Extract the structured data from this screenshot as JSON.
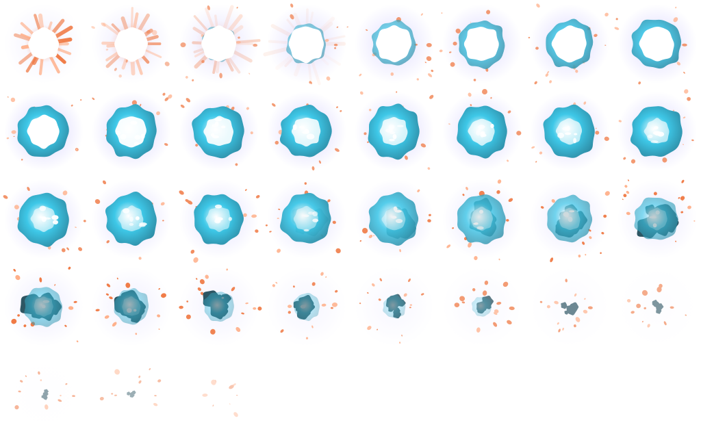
{
  "sprite_sheet": {
    "columns": 8,
    "rows": 5,
    "frame_count": 35,
    "colors": {
      "glow": "#8a7dff",
      "core": "#ffffff",
      "cyan": "#3ec8e8",
      "teal": "#2f8fa8",
      "smoke": "#2e5663",
      "spark": "#f07a45",
      "spark_light": "#ffb08a"
    },
    "frames": [
      {
        "stage": "flash",
        "core": 1.0,
        "cloud": 0.0,
        "smoke": 0.0,
        "glow": 0.3,
        "sparks": 0.0,
        "rays": 1.0,
        "size": 0.55
      },
      {
        "stage": "flash",
        "core": 1.0,
        "cloud": 0.1,
        "smoke": 0.0,
        "glow": 0.45,
        "sparks": 0.3,
        "rays": 0.7,
        "size": 0.62
      },
      {
        "stage": "expand",
        "core": 1.0,
        "cloud": 0.25,
        "smoke": 0.0,
        "glow": 0.55,
        "sparks": 0.45,
        "rays": 0.35,
        "size": 0.68
      },
      {
        "stage": "expand",
        "core": 1.0,
        "cloud": 0.35,
        "smoke": 0.0,
        "glow": 0.65,
        "sparks": 0.5,
        "rays": 0.1,
        "size": 0.72
      },
      {
        "stage": "expand",
        "core": 1.0,
        "cloud": 0.45,
        "smoke": 0.0,
        "glow": 0.7,
        "sparks": 0.55,
        "rays": 0.0,
        "size": 0.76
      },
      {
        "stage": "expand",
        "core": 1.0,
        "cloud": 0.55,
        "smoke": 0.0,
        "glow": 0.75,
        "sparks": 0.55,
        "rays": 0.0,
        "size": 0.78
      },
      {
        "stage": "expand",
        "core": 1.0,
        "cloud": 0.6,
        "smoke": 0.0,
        "glow": 0.78,
        "sparks": 0.55,
        "rays": 0.0,
        "size": 0.8
      },
      {
        "stage": "expand",
        "core": 1.0,
        "cloud": 0.65,
        "smoke": 0.0,
        "glow": 0.8,
        "sparks": 0.55,
        "rays": 0.0,
        "size": 0.82
      },
      {
        "stage": "peak",
        "core": 0.9,
        "cloud": 0.8,
        "smoke": 0.0,
        "glow": 0.9,
        "sparks": 0.55,
        "rays": 0.0,
        "size": 0.86
      },
      {
        "stage": "peak",
        "core": 0.85,
        "cloud": 0.82,
        "smoke": 0.0,
        "glow": 0.88,
        "sparks": 0.55,
        "rays": 0.0,
        "size": 0.86
      },
      {
        "stage": "peak",
        "core": 0.8,
        "cloud": 0.84,
        "smoke": 0.0,
        "glow": 0.86,
        "sparks": 0.55,
        "rays": 0.0,
        "size": 0.86
      },
      {
        "stage": "peak",
        "core": 0.75,
        "cloud": 0.86,
        "smoke": 0.0,
        "glow": 0.84,
        "sparks": 0.55,
        "rays": 0.0,
        "size": 0.86
      },
      {
        "stage": "peak",
        "core": 0.7,
        "cloud": 0.88,
        "smoke": 0.0,
        "glow": 0.82,
        "sparks": 0.55,
        "rays": 0.0,
        "size": 0.86
      },
      {
        "stage": "peak",
        "core": 0.65,
        "cloud": 0.9,
        "smoke": 0.0,
        "glow": 0.8,
        "sparks": 0.55,
        "rays": 0.0,
        "size": 0.86
      },
      {
        "stage": "peak",
        "core": 0.6,
        "cloud": 0.9,
        "smoke": 0.05,
        "glow": 0.78,
        "sparks": 0.55,
        "rays": 0.0,
        "size": 0.86
      },
      {
        "stage": "peak",
        "core": 0.55,
        "cloud": 0.9,
        "smoke": 0.1,
        "glow": 0.76,
        "sparks": 0.55,
        "rays": 0.0,
        "size": 0.86
      },
      {
        "stage": "dissipate",
        "core": 0.5,
        "cloud": 0.85,
        "smoke": 0.2,
        "glow": 0.7,
        "sparks": 0.6,
        "rays": 0.0,
        "size": 0.86
      },
      {
        "stage": "dissipate",
        "core": 0.45,
        "cloud": 0.8,
        "smoke": 0.28,
        "glow": 0.66,
        "sparks": 0.62,
        "rays": 0.0,
        "size": 0.86
      },
      {
        "stage": "dissipate",
        "core": 0.4,
        "cloud": 0.75,
        "smoke": 0.36,
        "glow": 0.62,
        "sparks": 0.65,
        "rays": 0.0,
        "size": 0.85
      },
      {
        "stage": "dissipate",
        "core": 0.35,
        "cloud": 0.7,
        "smoke": 0.44,
        "glow": 0.58,
        "sparks": 0.68,
        "rays": 0.0,
        "size": 0.84
      },
      {
        "stage": "dissipate",
        "core": 0.28,
        "cloud": 0.62,
        "smoke": 0.52,
        "glow": 0.54,
        "sparks": 0.7,
        "rays": 0.0,
        "size": 0.83
      },
      {
        "stage": "dissipate",
        "core": 0.22,
        "cloud": 0.55,
        "smoke": 0.58,
        "glow": 0.5,
        "sparks": 0.72,
        "rays": 0.0,
        "size": 0.82
      },
      {
        "stage": "dissipate",
        "core": 0.16,
        "cloud": 0.46,
        "smoke": 0.64,
        "glow": 0.46,
        "sparks": 0.74,
        "rays": 0.0,
        "size": 0.8
      },
      {
        "stage": "dissipate",
        "core": 0.1,
        "cloud": 0.38,
        "smoke": 0.7,
        "glow": 0.42,
        "sparks": 0.76,
        "rays": 0.0,
        "size": 0.78
      },
      {
        "stage": "smoke",
        "core": 0.05,
        "cloud": 0.28,
        "smoke": 0.75,
        "glow": 0.36,
        "sparks": 0.8,
        "rays": 0.0,
        "size": 0.74
      },
      {
        "stage": "smoke",
        "core": 0.03,
        "cloud": 0.22,
        "smoke": 0.72,
        "glow": 0.32,
        "sparks": 0.78,
        "rays": 0.0,
        "size": 0.7
      },
      {
        "stage": "smoke",
        "core": 0.0,
        "cloud": 0.16,
        "smoke": 0.66,
        "glow": 0.28,
        "sparks": 0.72,
        "rays": 0.0,
        "size": 0.64
      },
      {
        "stage": "smoke",
        "core": 0.0,
        "cloud": 0.1,
        "smoke": 0.58,
        "glow": 0.22,
        "sparks": 0.66,
        "rays": 0.0,
        "size": 0.58
      },
      {
        "stage": "smoke",
        "core": 0.0,
        "cloud": 0.05,
        "smoke": 0.5,
        "glow": 0.18,
        "sparks": 0.6,
        "rays": 0.0,
        "size": 0.52
      },
      {
        "stage": "smoke",
        "core": 0.0,
        "cloud": 0.02,
        "smoke": 0.42,
        "glow": 0.14,
        "sparks": 0.54,
        "rays": 0.0,
        "size": 0.46
      },
      {
        "stage": "smoke",
        "core": 0.0,
        "cloud": 0.0,
        "smoke": 0.34,
        "glow": 0.1,
        "sparks": 0.48,
        "rays": 0.0,
        "size": 0.4
      },
      {
        "stage": "smoke",
        "core": 0.0,
        "cloud": 0.0,
        "smoke": 0.26,
        "glow": 0.06,
        "sparks": 0.42,
        "rays": 0.0,
        "size": 0.34
      },
      {
        "stage": "fade",
        "core": 0.0,
        "cloud": 0.0,
        "smoke": 0.18,
        "glow": 0.02,
        "sparks": 0.34,
        "rays": 0.0,
        "size": 0.28
      },
      {
        "stage": "fade",
        "core": 0.0,
        "cloud": 0.0,
        "smoke": 0.12,
        "glow": 0.0,
        "sparks": 0.28,
        "rays": 0.0,
        "size": 0.24
      },
      {
        "stage": "fade",
        "core": 0.0,
        "cloud": 0.0,
        "smoke": 0.0,
        "glow": 0.0,
        "sparks": 0.22,
        "rays": 0.0,
        "size": 0.2
      }
    ]
  }
}
